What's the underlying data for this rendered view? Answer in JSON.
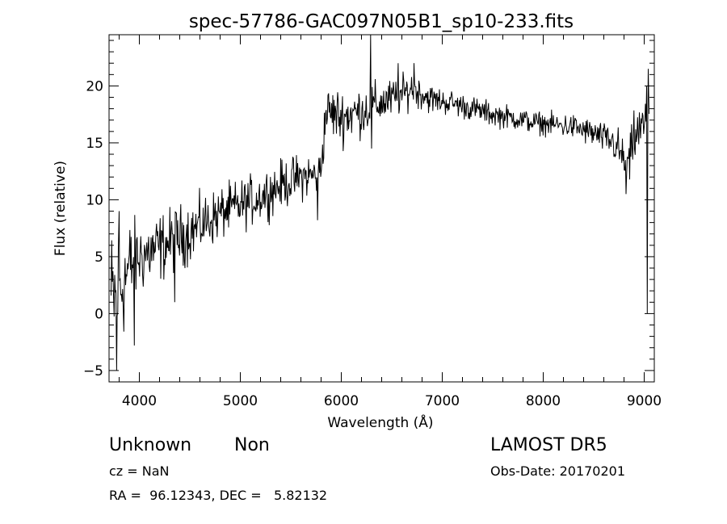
{
  "chart_data": {
    "type": "line",
    "title": "spec-57786-GAC097N05B1_sp10-233.fits",
    "xlabel": "Wavelength (Å)",
    "ylabel": "Flux (relative)",
    "xlim": [
      3700,
      9100
    ],
    "ylim": [
      -6,
      24.5
    ],
    "x_ticks": [
      4000,
      5000,
      6000,
      7000,
      8000,
      9000
    ],
    "x_tick_labels": [
      "4000",
      "5000",
      "6000",
      "7000",
      "8000",
      "9000"
    ],
    "y_ticks": [
      -5,
      0,
      5,
      10,
      15,
      20
    ],
    "y_tick_labels": [
      "−5",
      "0",
      "5",
      "10",
      "15",
      "20"
    ],
    "grid": false,
    "series": [
      {
        "color": "#000000",
        "continuum": {
          "x": [
            3720,
            3800,
            3900,
            4000,
            4200,
            4500,
            4800,
            5000,
            5200,
            5400,
            5600,
            5750,
            5800,
            5850,
            6000,
            6200,
            6400,
            6600,
            6700,
            6900,
            7100,
            7300,
            7500,
            7700,
            7900,
            8100,
            8300,
            8500,
            8700,
            8800,
            8850,
            8900,
            9000,
            9050
          ],
          "y": [
            1.0,
            2.0,
            4.0,
            5.0,
            5.8,
            7.2,
            8.8,
            9.5,
            10.3,
            11.3,
            12.0,
            12.2,
            13.0,
            17.8,
            17.3,
            17.8,
            18.5,
            19.2,
            19.8,
            18.8,
            18.5,
            18.0,
            17.5,
            17.2,
            16.8,
            16.6,
            16.4,
            15.8,
            15.0,
            13.5,
            13.0,
            15.5,
            16.5,
            18.5
          ]
        },
        "noise": {
          "x": [
            3720,
            3850,
            4000,
            4400,
            4800,
            5800,
            6000,
            7000,
            8000,
            8600,
            8800,
            9050
          ],
          "amplitude": [
            4.0,
            3.0,
            2.0,
            1.7,
            1.4,
            1.2,
            1.5,
            0.7,
            0.6,
            0.8,
            1.3,
            1.5
          ]
        },
        "features": [
          {
            "x": 3775,
            "y": -5.0
          },
          {
            "x": 3800,
            "y": 9.0
          },
          {
            "x": 3950,
            "y": -2.8
          },
          {
            "x": 4350,
            "y": 1.0
          },
          {
            "x": 5765,
            "y": 8.2
          },
          {
            "x": 6290,
            "y": 25.0
          },
          {
            "x": 6300,
            "y": 14.5
          },
          {
            "x": 6563,
            "y": 22.0
          },
          {
            "x": 6720,
            "y": 22.0
          },
          {
            "x": 8820,
            "y": 10.5
          },
          {
            "x": 9030,
            "y": 0.0
          },
          {
            "x": 9040,
            "y": 21.5
          }
        ]
      }
    ]
  },
  "info": {
    "object_class": "Unknown",
    "object_subclass": "Non",
    "redshift": "cz = NaN",
    "coordinates": "RA =  96.12343, DEC =   5.82132",
    "survey": "LAMOST DR5",
    "obs_date": "Obs-Date: 20170201"
  }
}
